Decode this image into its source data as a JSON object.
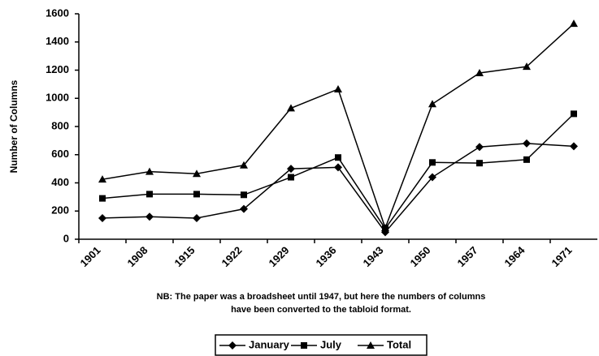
{
  "chart_data": {
    "type": "line",
    "categories": [
      "1901",
      "1908",
      "1915",
      "1922",
      "1929",
      "1936",
      "1943",
      "1950",
      "1957",
      "1964",
      "1971"
    ],
    "y_label": "Number of Columns",
    "note": [
      "NB: The paper was a broadsheet until 1947, but here the numbers of columns",
      "have been converted to the tabloid format."
    ],
    "series": [
      {
        "name": "January",
        "color": "#000000",
        "marker": "diamond",
        "values": [
          150,
          160,
          150,
          215,
          500,
          510,
          50,
          440,
          655,
          680,
          660
        ]
      },
      {
        "name": "July",
        "color": "#000000",
        "marker": "square",
        "values": [
          290,
          320,
          320,
          315,
          440,
          580,
          75,
          545,
          540,
          565,
          890
        ]
      },
      {
        "name": "Total",
        "color": "#000000",
        "marker": "triangle",
        "values": [
          425,
          480,
          465,
          525,
          930,
          1065,
          80,
          960,
          1180,
          1225,
          1530
        ]
      }
    ],
    "ylim": [
      0,
      1600
    ],
    "yticks": [
      0,
      200,
      400,
      600,
      800,
      1000,
      1200,
      1400,
      1600
    ],
    "grid": false,
    "legend": "bottom"
  }
}
